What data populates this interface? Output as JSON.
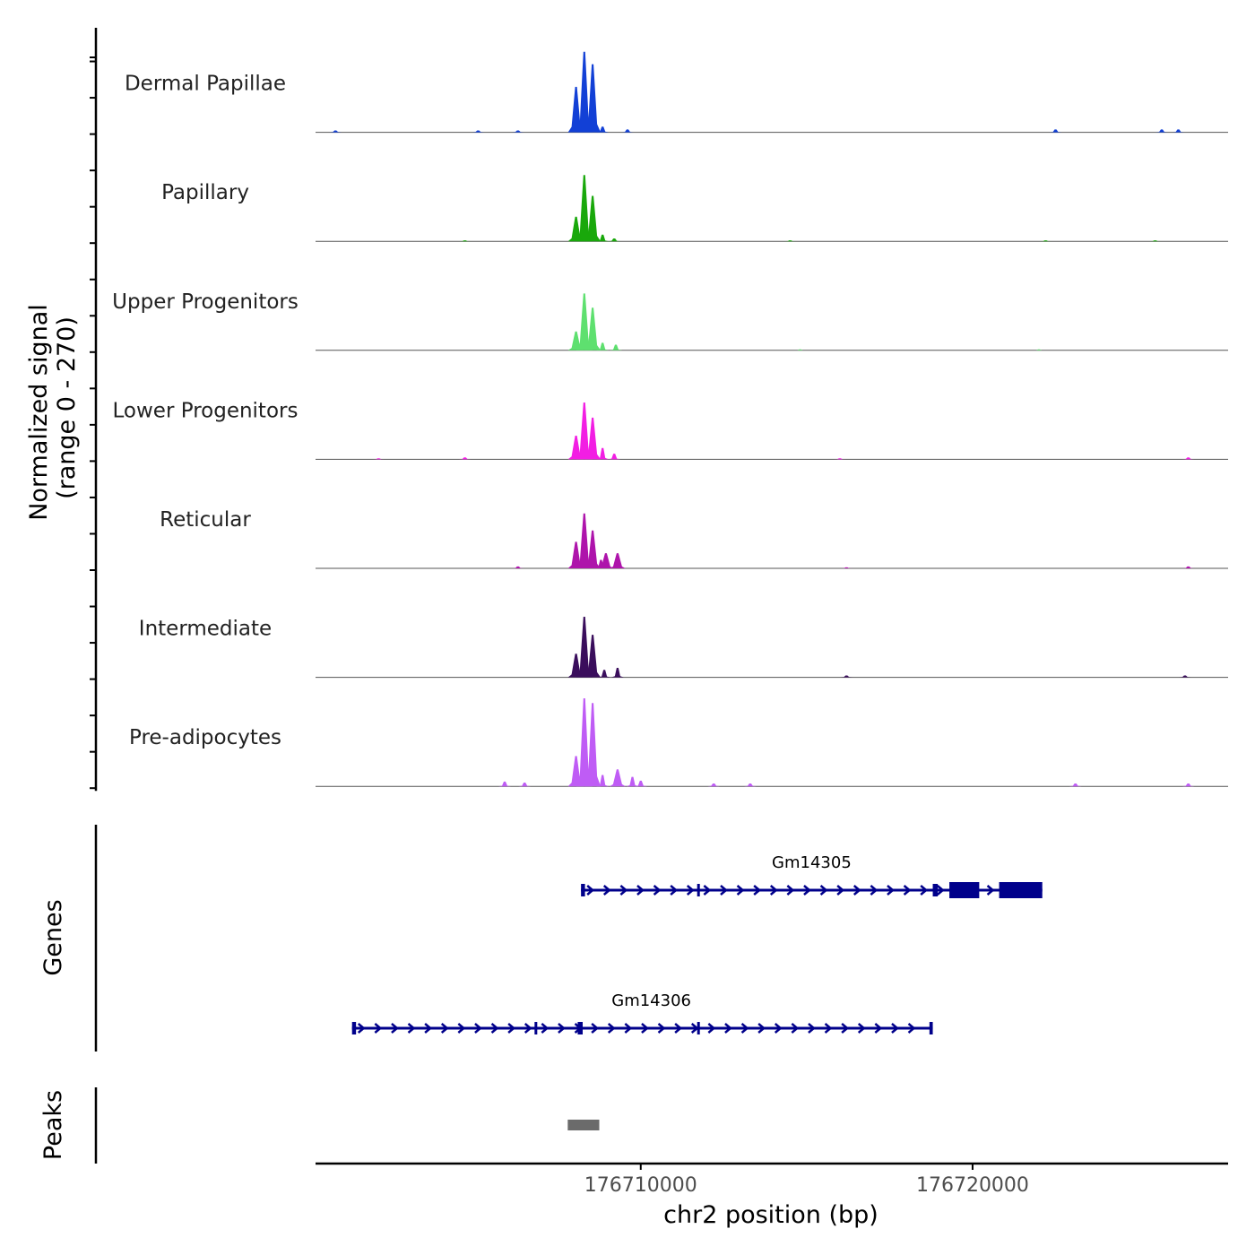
{
  "chart_data": {
    "type": "area",
    "title": "",
    "xlabel": "chr2 position (bp)",
    "xlim": [
      176700200,
      176727700
    ],
    "x_ticks": [
      176710000,
      176720000
    ],
    "x_tick_labels": [
      "176710000",
      "176720000"
    ],
    "coverage": {
      "ylabel_line1": "Normalized signal",
      "ylabel_line2": "(range 0 - 270)",
      "ylim": [
        0,
        270
      ],
      "tracks": [
        {
          "name": "Dermal Papillae",
          "color": "#1240d6",
          "peaks": [
            [
              176708300,
              0.85
            ],
            [
              176708050,
              0.48
            ],
            [
              176708550,
              0.72
            ],
            [
              176708850,
              0.06
            ],
            [
              176709600,
              0.03
            ],
            [
              176700800,
              0.02
            ],
            [
              176705100,
              0.02
            ],
            [
              176706300,
              0.02
            ],
            [
              176722500,
              0.03
            ],
            [
              176725700,
              0.03
            ],
            [
              176726200,
              0.03
            ]
          ]
        },
        {
          "name": "Papillary",
          "color": "#19a80b",
          "peaks": [
            [
              176708300,
              0.7
            ],
            [
              176708050,
              0.26
            ],
            [
              176708550,
              0.48
            ],
            [
              176708850,
              0.07
            ],
            [
              176709200,
              0.03
            ],
            [
              176704700,
              0.01
            ],
            [
              176714500,
              0.01
            ],
            [
              176722200,
              0.01
            ],
            [
              176725500,
              0.01
            ]
          ]
        },
        {
          "name": "Upper Progenitors",
          "color": "#5ee06f",
          "peaks": [
            [
              176708300,
              0.6
            ],
            [
              176708050,
              0.2
            ],
            [
              176708550,
              0.45
            ],
            [
              176708850,
              0.08
            ],
            [
              176709250,
              0.06
            ],
            [
              176714800,
              0.01
            ],
            [
              176722000,
              0.01
            ]
          ]
        },
        {
          "name": "Lower Progenitors",
          "color": "#f21ee3",
          "peaks": [
            [
              176708300,
              0.6
            ],
            [
              176708050,
              0.25
            ],
            [
              176708550,
              0.44
            ],
            [
              176708850,
              0.12
            ],
            [
              176709200,
              0.06
            ],
            [
              176704700,
              0.02
            ],
            [
              176702100,
              0.01
            ],
            [
              176716000,
              0.01
            ],
            [
              176726500,
              0.02
            ]
          ]
        },
        {
          "name": "Reticular",
          "color": "#ae14ab",
          "peaks": [
            [
              176708300,
              0.58
            ],
            [
              176708550,
              0.4
            ],
            [
              176708050,
              0.28
            ],
            [
              176708950,
              0.16
            ],
            [
              176709300,
              0.16
            ],
            [
              176708800,
              0.09
            ],
            [
              176706300,
              0.02
            ],
            [
              176716200,
              0.01
            ],
            [
              176726500,
              0.02
            ]
          ]
        },
        {
          "name": "Intermediate",
          "color": "#3a0e5c",
          "peaks": [
            [
              176708300,
              0.64
            ],
            [
              176708550,
              0.45
            ],
            [
              176708050,
              0.25
            ],
            [
              176708900,
              0.08
            ],
            [
              176709300,
              0.1
            ],
            [
              176716200,
              0.02
            ],
            [
              176726400,
              0.02
            ]
          ]
        },
        {
          "name": "Pre-adipocytes",
          "color": "#bf5cf5",
          "peaks": [
            [
              176708300,
              0.93
            ],
            [
              176708550,
              0.88
            ],
            [
              176708050,
              0.32
            ],
            [
              176708850,
              0.12
            ],
            [
              176709300,
              0.18
            ],
            [
              176709750,
              0.1
            ],
            [
              176710000,
              0.06
            ],
            [
              176705900,
              0.05
            ],
            [
              176706500,
              0.04
            ],
            [
              176712200,
              0.03
            ],
            [
              176713300,
              0.03
            ],
            [
              176723100,
              0.03
            ],
            [
              176726500,
              0.03
            ]
          ]
        }
      ]
    },
    "genes": {
      "ylabel": "Genes",
      "color": "#00008b",
      "items": [
        {
          "name": "Gm14305",
          "start": 176708200,
          "end": 176722100,
          "strand": "+",
          "blocks": [
            [
              176708200,
              176708320
            ],
            [
              176711700,
              176711740
            ],
            [
              176718800,
              176718950
            ],
            [
              176719300,
              176720200
            ],
            [
              176720800,
              176722100
            ]
          ]
        },
        {
          "name": "Gm14306",
          "start": 176701300,
          "end": 176718800,
          "strand": "+",
          "blocks": [
            [
              176701300,
              176701420
            ],
            [
              176706800,
              176706880
            ],
            [
              176708100,
              176708250
            ],
            [
              176711700,
              176711780
            ],
            [
              176718700,
              176718800
            ]
          ]
        }
      ]
    },
    "peaks": {
      "ylabel": "Peaks",
      "color": "#6b6b6b",
      "regions": [
        [
          176707800,
          176708750
        ]
      ]
    }
  }
}
